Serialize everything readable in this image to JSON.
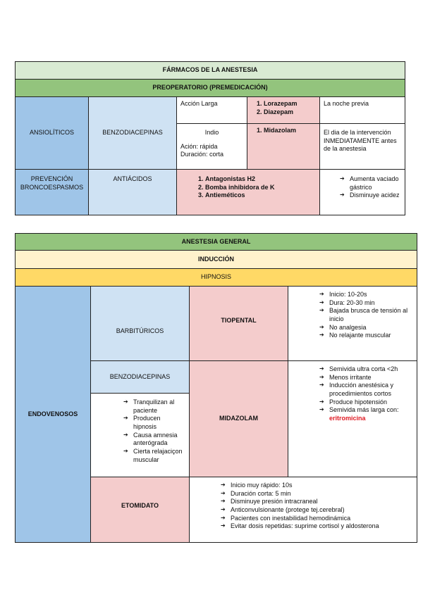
{
  "table1": {
    "title": "FÁRMACOS DE LA ANESTESIA",
    "subtitle": "PREOPERATORIO (PREMEDICACIÓN)",
    "row1": {
      "category": "ANSIOLÍTICOS",
      "group": "BENZODIACEPINAS",
      "long": {
        "label": "Acción Larga",
        "drugs": [
          "Lorazepam",
          "Diazepam"
        ],
        "timing": "La noche previa"
      },
      "short": {
        "label": "Indio",
        "action": "Ación: rápida",
        "duration": "Duración: corta",
        "drugs": [
          "Midazolam"
        ],
        "timing": "El dia de la intervención INMEDIATAMENTE antes de la anestesia"
      }
    },
    "row2": {
      "category": "PREVENCIÓN BRONCOESPASMOS",
      "group": "ANTIÁCIDOS",
      "drugs": [
        "Antagonistas H2",
        "Bomba inhibidora de K",
        "Antieméticos"
      ],
      "effects": [
        "Aumenta vaciado gástrico",
        "Disminuye acidez"
      ]
    }
  },
  "table2": {
    "title": "ANESTESIA GENERAL",
    "phase": "INDUCCIÓN",
    "sub": "HIPNOSIS",
    "category": "ENDOVENOSOS",
    "barbituricos": {
      "group": "BARBITÚRICOS",
      "drug": "TIOPENTAL",
      "notes": [
        "Inicio: 10-20s",
        "Dura: 20-30 min",
        "Bajada brusca de tensión al inicio",
        "No analgesia",
        "No relajante muscular"
      ]
    },
    "benzo": {
      "group": "BENZODIACEPINAS",
      "effects": [
        "Tranquilizan al paciente",
        "Producen hipnosis",
        "Causa amnesia anterógrada",
        "Cierta relajaciçon muscular"
      ],
      "drug": "MIDAZOLAM",
      "notes": [
        "Semivida ultra corta <2h",
        "Menos irritante",
        "Inducción anestésica y procedimientos cortos",
        "Produce hipotensión",
        "Semivida más larga con:"
      ],
      "highlight": "eritromicina"
    },
    "etomidato": {
      "drug": "ETOMIDATO",
      "notes": [
        "Inicio muy rápido: 10s",
        "Duración corta: 5 min",
        "Disminuye presión intracraneal",
        "Anticonvulsionante (protege tej.cerebral)",
        "Pacientes con inestabilidad hemodinámica",
        "Evitar dosis repetidas: suprime cortisol y aldosterona"
      ]
    }
  },
  "colors": {
    "light_green": "#d9ead3",
    "green": "#93c47d",
    "light_yellow": "#fff2cc",
    "yellow": "#ffd966",
    "blue": "#9fc5e8",
    "light_blue": "#cfe2f3",
    "pink": "#f4cccc",
    "highlight_red": "#e01b24"
  }
}
